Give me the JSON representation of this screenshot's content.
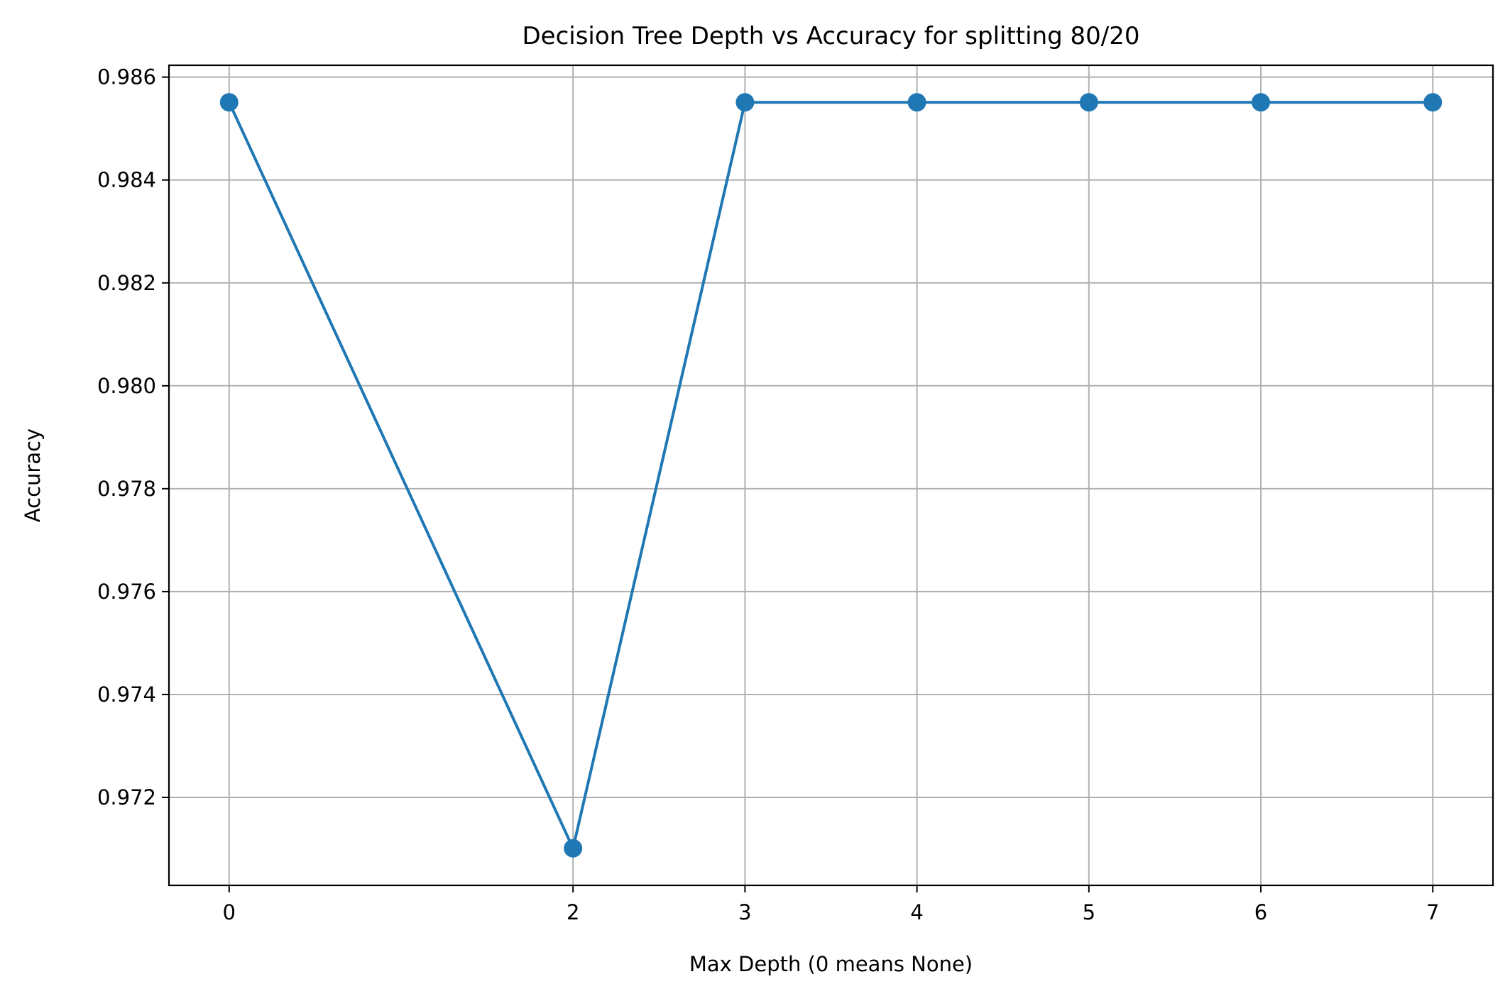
{
  "chart_data": {
    "type": "line",
    "title": "Decision Tree Depth vs Accuracy for splitting 80/20",
    "xlabel": "Max Depth (0 means None)",
    "ylabel": "Accuracy",
    "x": [
      0,
      2,
      3,
      4,
      5,
      6,
      7
    ],
    "series": [
      {
        "values": [
          0.98551,
          0.97101,
          0.98551,
          0.98551,
          0.98551,
          0.98551,
          0.98551
        ]
      }
    ],
    "xticks": [
      0,
      2,
      3,
      4,
      5,
      6,
      7
    ],
    "xtick_labels": [
      "0",
      "2",
      "3",
      "4",
      "5",
      "6",
      "7"
    ],
    "yticks": [
      0.972,
      0.974,
      0.976,
      0.978,
      0.98,
      0.982,
      0.984,
      0.986
    ],
    "ytick_labels": [
      "0.972",
      "0.974",
      "0.976",
      "0.978",
      "0.980",
      "0.982",
      "0.984",
      "0.986"
    ],
    "xlim": [
      -0.35,
      7.35
    ],
    "ylim": [
      0.97029,
      0.98623
    ],
    "grid": true,
    "legend": false,
    "colors": {
      "line": "#1f77b4",
      "grid": "#b0b0b0",
      "axes": "#000000"
    },
    "marker": "circle"
  }
}
